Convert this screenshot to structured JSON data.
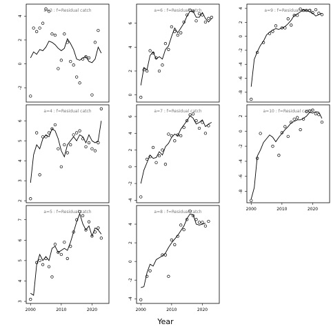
{
  "chart_data": {
    "type": "line",
    "xlabel": "Year",
    "xticks": [
      2000,
      2010,
      2020
    ],
    "panels": [
      {
        "title": "a=3  :  f=Residual catch",
        "ylim": [
          -3.2,
          5.0
        ],
        "yticks": [
          -2,
          0,
          2,
          4
        ],
        "x": [
          2000,
          2001,
          2002,
          2003,
          2004,
          2005,
          2006,
          2007,
          2008,
          2009,
          2010,
          2011,
          2012,
          2013,
          2014,
          2015,
          2016,
          2017,
          2018,
          2019,
          2020,
          2021,
          2022,
          2023,
          2024
        ],
        "points": [
          -2.7,
          3.0,
          2.7,
          3.0,
          3.4,
          4.6,
          4.4,
          2.5,
          2.4,
          -0.4,
          0.3,
          2.5,
          1.8,
          0.2,
          -0.1,
          -1.1,
          -1.6,
          0.4,
          0.6,
          0.5,
          -2.6,
          1.8,
          2.8,
          null,
          null
        ],
        "fit": [
          0.5,
          1.0,
          0.8,
          1.2,
          1.1,
          1.4,
          1.9,
          1.8,
          1.6,
          1.3,
          1.1,
          1.3,
          2.1,
          1.7,
          1.2,
          0.4,
          0.3,
          0.5,
          0.6,
          0.2,
          0.1,
          0.4,
          1.4,
          0.9,
          null
        ]
      },
      {
        "title": "a=4  :  f=Residual catch",
        "ylim": [
          1.9,
          6.8
        ],
        "yticks": [
          2,
          3,
          4,
          5,
          6
        ],
        "x": [
          2000,
          2001,
          2002,
          2003,
          2004,
          2005,
          2006,
          2007,
          2008,
          2009,
          2010,
          2011,
          2012,
          2013,
          2014,
          2015,
          2016,
          2017,
          2018,
          2019,
          2020,
          2021,
          2022,
          2023,
          2024
        ],
        "points": [
          2.1,
          null,
          5.4,
          3.3,
          5.2,
          5.2,
          5.4,
          5.6,
          5.8,
          4.6,
          3.7,
          4.8,
          4.4,
          4.8,
          5.3,
          5.4,
          5.5,
          5.1,
          4.7,
          4.9,
          4.6,
          4.5,
          4.9,
          6.6,
          null
        ],
        "fit": [
          2.9,
          4.3,
          4.8,
          4.6,
          5.1,
          5.3,
          5.2,
          5.6,
          5.5,
          5.1,
          4.5,
          4.2,
          4.8,
          5.0,
          5.2,
          5.0,
          5.3,
          5.2,
          4.9,
          5.3,
          5.0,
          4.9,
          5.0,
          6.0,
          null
        ]
      },
      {
        "title": "a=5  :  f=Residual catch",
        "ylim": [
          2.9,
          7.7
        ],
        "yticks": [
          3,
          4,
          5,
          6,
          7
        ],
        "x": [
          2000,
          2001,
          2002,
          2003,
          2004,
          2005,
          2006,
          2007,
          2008,
          2009,
          2010,
          2011,
          2012,
          2013,
          2014,
          2015,
          2016,
          2017,
          2018,
          2019,
          2020,
          2021,
          2022,
          2023,
          2024
        ],
        "points": [
          3.1,
          null,
          4.9,
          5.0,
          4.8,
          5.1,
          4.7,
          4.2,
          5.8,
          5.4,
          5.3,
          5.9,
          5.1,
          5.7,
          6.4,
          7.0,
          7.4,
          7.2,
          6.5,
          6.9,
          6.2,
          6.4,
          6.6,
          6.1,
          null
        ],
        "fit": [
          3.4,
          3.3,
          4.8,
          5.3,
          5.0,
          5.2,
          5.0,
          5.6,
          5.7,
          5.4,
          5.5,
          5.6,
          5.5,
          5.9,
          6.4,
          6.9,
          7.3,
          6.8,
          6.5,
          6.7,
          6.2,
          6.6,
          6.5,
          6.3,
          null
        ]
      },
      {
        "title": "a=6  :  f=Residual catch",
        "ylim": [
          -0.6,
          7.6
        ],
        "yticks": [
          0,
          2,
          4,
          6
        ],
        "x": [
          2000,
          2001,
          2002,
          2003,
          2004,
          2005,
          2006,
          2007,
          2008,
          2009,
          2010,
          2011,
          2012,
          2013,
          2014,
          2015,
          2016,
          2017,
          2018,
          2019,
          2020,
          2021,
          2022,
          2023,
          2024
        ],
        "points": [
          -0.2,
          2.1,
          2.0,
          3.7,
          3.5,
          3.1,
          2.0,
          2.5,
          4.3,
          3.8,
          5.7,
          5.3,
          5.0,
          5.2,
          6.1,
          6.7,
          7.1,
          7.0,
          6.2,
          6.8,
          6.7,
          6.1,
          6.4,
          6.5,
          null
        ],
        "fit": [
          0.8,
          2.3,
          2.1,
          3.3,
          3.6,
          3.0,
          3.2,
          3.0,
          3.8,
          4.1,
          4.9,
          5.6,
          5.2,
          5.6,
          6.0,
          6.6,
          7.0,
          7.0,
          6.5,
          6.5,
          6.9,
          6.4,
          6.1,
          6.4,
          null
        ]
      },
      {
        "title": "a=7  :  f=Residual catch",
        "ylim": [
          -4.3,
          7.4
        ],
        "yticks": [
          -4,
          -2,
          0,
          2,
          4,
          6
        ],
        "x": [
          2000,
          2001,
          2002,
          2003,
          2004,
          2005,
          2006,
          2007,
          2008,
          2009,
          2010,
          2011,
          2012,
          2013,
          2014,
          2015,
          2016,
          2017,
          2018,
          2019,
          2020,
          2021,
          2022,
          2023,
          2024
        ],
        "points": [
          -3.6,
          null,
          0.9,
          1.2,
          2.3,
          0.5,
          1.3,
          2.0,
          0.3,
          3.9,
          3.7,
          3.1,
          3.8,
          3.7,
          4.7,
          5.5,
          6.2,
          6.3,
          5.5,
          4.6,
          5.3,
          4.0,
          4.9,
          null,
          null
        ],
        "fit": [
          -2.0,
          -0.4,
          0.5,
          1.4,
          1.0,
          1.1,
          1.8,
          1.4,
          2.4,
          2.8,
          3.5,
          3.9,
          3.7,
          4.5,
          5.0,
          5.5,
          6.1,
          5.8,
          5.1,
          5.3,
          5.6,
          4.8,
          5.1,
          5.3,
          null
        ]
      },
      {
        "title": "a=8  :  f=Residual catch",
        "ylim": [
          -4.5,
          6.0
        ],
        "yticks": [
          -4,
          -2,
          0,
          2,
          4
        ],
        "x": [
          2000,
          2001,
          2002,
          2003,
          2004,
          2005,
          2006,
          2007,
          2008,
          2009,
          2010,
          2011,
          2012,
          2013,
          2014,
          2015,
          2016,
          2017,
          2018,
          2019,
          2020,
          2021,
          2022,
          2023,
          2024
        ],
        "points": [
          -4.1,
          null,
          -1.6,
          -1.0,
          null,
          null,
          null,
          0.7,
          0.7,
          -1.6,
          2.3,
          1.8,
          2.7,
          3.9,
          3.4,
          4.5,
          5.4,
          4.9,
          4.5,
          4.2,
          4.2,
          3.8,
          4.3,
          null,
          null
        ],
        "fit": [
          -2.8,
          -2.7,
          -1.2,
          -0.3,
          -0.5,
          0.2,
          0.4,
          0.6,
          0.9,
          1.5,
          2.0,
          2.4,
          2.8,
          3.3,
          3.8,
          4.6,
          5.1,
          5.0,
          4.0,
          3.9,
          4.0,
          4.1,
          null,
          null,
          null
        ]
      },
      {
        "title": "a=9  :  f=Residual catch",
        "ylim": [
          -9.4,
          4.6
        ],
        "yticks": [
          -8,
          -6,
          -4,
          -2,
          0,
          2,
          4
        ],
        "x": [
          2000,
          2001,
          2002,
          2003,
          2004,
          2005,
          2006,
          2007,
          2008,
          2009,
          2010,
          2011,
          2012,
          2013,
          2014,
          2015,
          2016,
          2017,
          2018,
          2019,
          2020,
          2021,
          2022,
          2023,
          2024
        ],
        "points": [
          -9.0,
          null,
          -2.3,
          null,
          -0.9,
          null,
          0.4,
          0.7,
          1.5,
          null,
          1.2,
          1.2,
          2.5,
          1.6,
          3.0,
          3.0,
          3.9,
          3.7,
          3.7,
          3.7,
          3.4,
          3.8,
          3.3,
          3.1,
          null
        ],
        "fit": [
          -7.2,
          -3.3,
          -2.2,
          -1.3,
          -0.7,
          0.2,
          0.6,
          0.9,
          1.1,
          1.0,
          1.2,
          1.4,
          1.8,
          2.3,
          3.0,
          3.2,
          3.5,
          3.8,
          3.7,
          3.5,
          3.3,
          2.9,
          3.1,
          3.3,
          null
        ]
      },
      {
        "title": "a=10  :  f=Residual catch",
        "ylim": [
          -9.5,
          3.5
        ],
        "yticks": [
          -8,
          -6,
          -4,
          -2,
          0,
          2
        ],
        "x": [
          2000,
          2001,
          2002,
          2003,
          2004,
          2005,
          2006,
          2007,
          2008,
          2009,
          2010,
          2011,
          2012,
          2013,
          2014,
          2015,
          2016,
          2017,
          2018,
          2019,
          2020,
          2021,
          2022,
          2023,
          2024
        ],
        "points": [
          -9.2,
          null,
          -3.6,
          -0.3,
          null,
          null,
          null,
          -2.0,
          null,
          -3.2,
          -0.2,
          0.6,
          -0.7,
          1.2,
          1.6,
          1.8,
          0.2,
          1.6,
          2.6,
          2.7,
          2.8,
          2.3,
          2.2,
          1.2,
          null
        ],
        "fit": [
          -9.0,
          -7.5,
          -3.3,
          -2.5,
          -1.5,
          -1.0,
          -0.5,
          -0.8,
          -1.4,
          -0.8,
          -0.3,
          0.2,
          0.6,
          1.1,
          1.3,
          1.5,
          1.5,
          1.7,
          2.0,
          2.5,
          2.4,
          2.6,
          2.5,
          1.7,
          null
        ]
      }
    ]
  }
}
